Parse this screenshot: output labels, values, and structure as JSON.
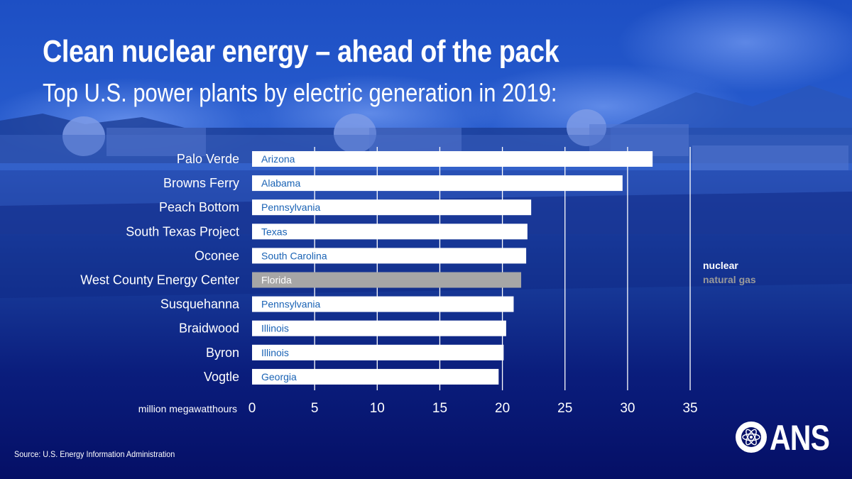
{
  "title": "Clean nuclear energy – ahead of the pack",
  "subtitle": "Top U.S. power plants by electric generation in 2019:",
  "legend": {
    "nuclear": "nuclear",
    "natural_gas": "natural gas"
  },
  "source": "Source: U.S. Energy Information Administration",
  "logo": {
    "text": "ANS",
    "seal_text": "AMERICAN NUCLEAR SOCIETY"
  },
  "colors": {
    "nuclear": "#ffffff",
    "natural_gas": "#a6a6a6",
    "state_label_nuclear": "#1a63b5",
    "state_label_gas": "#ffffff",
    "background": "#07126a"
  },
  "chart_data": {
    "type": "bar",
    "orientation": "horizontal",
    "xlabel": "million megawatthours",
    "xlim": [
      0,
      35
    ],
    "xticks": [
      0,
      5,
      10,
      15,
      20,
      25,
      30,
      35
    ],
    "grid": true,
    "categories": [
      "Palo Verde",
      "Browns Ferry",
      "Peach Bottom",
      "South Texas Project",
      "Oconee",
      "West County Energy Center",
      "Susquehanna",
      "Braidwood",
      "Byron",
      "Vogtle"
    ],
    "states": [
      "Arizona",
      "Alabama",
      "Pennsylvania",
      "Texas",
      "South Carolina",
      "Florida",
      "Pennsylvania",
      "Illinois",
      "Illinois",
      "Georgia"
    ],
    "fuel": [
      "nuclear",
      "nuclear",
      "nuclear",
      "nuclear",
      "nuclear",
      "natural gas",
      "nuclear",
      "nuclear",
      "nuclear",
      "nuclear"
    ],
    "values": [
      32.0,
      29.6,
      22.3,
      22.0,
      21.9,
      21.5,
      20.9,
      20.3,
      20.1,
      19.7
    ]
  }
}
